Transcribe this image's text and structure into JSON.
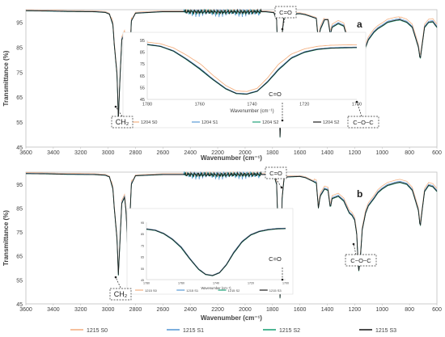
{
  "chart_data": [
    {
      "id": "a",
      "type": "line",
      "panel_letter": "a",
      "xlabel": "Wavenumber (cm⁻¹)",
      "ylabel": "Transmittance (%)",
      "xlim": [
        3600,
        600
      ],
      "ylim": [
        45,
        100
      ],
      "xticks": [
        "3600",
        "3400",
        "3200",
        "3000",
        "2800",
        "2600",
        "2400",
        "2200",
        "2000",
        "1800",
        "1600",
        "1400",
        "1200",
        "1000",
        "800",
        "600"
      ],
      "yticks": [
        "45",
        "55",
        "65",
        "75",
        "85",
        "95"
      ],
      "grid": false,
      "legend_position": "bottom",
      "series": [
        {
          "name": "1204 S0",
          "color": "#f4b183"
        },
        {
          "name": "1204 S1",
          "color": "#5b9bd5"
        },
        {
          "name": "1204 S2",
          "color": "#21a37a"
        },
        {
          "name": "1204 S2",
          "color": "#1f1f1f"
        }
      ],
      "spectrum": [
        [
          3600,
          99.6
        ],
        [
          3450,
          99.5
        ],
        [
          3300,
          99.3
        ],
        [
          3100,
          99.2
        ],
        [
          3020,
          98.9
        ],
        [
          2990,
          98.2
        ],
        [
          2965,
          94
        ],
        [
          2955,
          86
        ],
        [
          2935,
          74
        ],
        [
          2925,
          56
        ],
        [
          2915,
          70
        ],
        [
          2900,
          88
        ],
        [
          2880,
          90.5
        ],
        [
          2868,
          84
        ],
        [
          2855,
          66
        ],
        [
          2845,
          76
        ],
        [
          2830,
          95.5
        ],
        [
          2800,
          98.6
        ],
        [
          2600,
          99.2
        ],
        [
          2400,
          99.2
        ],
        [
          2200,
          99.1
        ],
        [
          2000,
          99.1
        ],
        [
          1850,
          99.2
        ],
        [
          1790,
          98.8
        ],
        [
          1770,
          96
        ],
        [
          1755,
          70
        ],
        [
          1745,
          49
        ],
        [
          1737,
          60
        ],
        [
          1730,
          90
        ],
        [
          1715,
          97.8
        ],
        [
          1690,
          98.2
        ],
        [
          1600,
          98.4
        ],
        [
          1560,
          98
        ],
        [
          1480,
          96.5
        ],
        [
          1465,
          87
        ],
        [
          1452,
          92
        ],
        [
          1420,
          96
        ],
        [
          1395,
          96
        ],
        [
          1378,
          90
        ],
        [
          1365,
          93
        ],
        [
          1320,
          94.5
        ],
        [
          1280,
          93.5
        ],
        [
          1240,
          86
        ],
        [
          1220,
          84
        ],
        [
          1200,
          83
        ],
        [
          1185,
          77
        ],
        [
          1172,
          60
        ],
        [
          1160,
          65
        ],
        [
          1145,
          78
        ],
        [
          1120,
          85
        ],
        [
          1100,
          88
        ],
        [
          1060,
          91
        ],
        [
          1030,
          92.5
        ],
        [
          1000,
          93.5
        ],
        [
          960,
          95
        ],
        [
          900,
          95.8
        ],
        [
          870,
          96
        ],
        [
          820,
          95
        ],
        [
          780,
          93
        ],
        [
          735,
          85
        ],
        [
          722,
          80
        ],
        [
          710,
          85
        ],
        [
          690,
          93
        ],
        [
          660,
          95
        ],
        [
          630,
          95.2
        ],
        [
          600,
          93
        ]
      ],
      "inset": {
        "xlim": [
          1780,
          1700
        ],
        "ylim": [
          45,
          95
        ],
        "xticks": [
          "1780",
          "1760",
          "1740",
          "1720",
          "1700"
        ],
        "yticks": [
          "45",
          "55",
          "65",
          "75",
          "85",
          "95"
        ],
        "xlabel": "Wavenumber (cm⁻¹)",
        "legend": [
          "1204 S0",
          "1204 S1",
          "1204 S2",
          "1204 S2"
        ],
        "spectrum": [
          [
            1780,
            91.5
          ],
          [
            1775,
            90
          ],
          [
            1770,
            86
          ],
          [
            1765,
            79
          ],
          [
            1760,
            71
          ],
          [
            1755,
            62
          ],
          [
            1750,
            54
          ],
          [
            1746,
            50
          ],
          [
            1742,
            49.5
          ],
          [
            1738,
            52
          ],
          [
            1734,
            60
          ],
          [
            1730,
            70
          ],
          [
            1725,
            80
          ],
          [
            1720,
            85
          ],
          [
            1715,
            87.5
          ],
          [
            1710,
            88.5
          ],
          [
            1705,
            88.8
          ],
          [
            1700,
            89
          ]
        ],
        "orange_offset": 3.5
      },
      "annotations": [
        {
          "id": "c_o_top",
          "text": "C=O"
        },
        {
          "id": "c_o_mid",
          "text": "C=O"
        },
        {
          "id": "ch2",
          "text": "CH₂"
        },
        {
          "id": "coc",
          "text": "C−O−C"
        }
      ]
    },
    {
      "id": "b",
      "type": "line",
      "panel_letter": "b",
      "xlabel": "Wavenumber (cm⁻¹)",
      "ylabel": "Transmittance (%)",
      "xlim": [
        3600,
        600
      ],
      "ylim": [
        45,
        100
      ],
      "xticks": [
        "3600",
        "3400",
        "3200",
        "3000",
        "2800",
        "2600",
        "2400",
        "2200",
        "2000",
        "1800",
        "1600",
        "1400",
        "1200",
        "1000",
        "800",
        "600"
      ],
      "yticks": [
        "45",
        "55",
        "65",
        "75",
        "85",
        "95"
      ],
      "grid": false,
      "legend_position": "bottom",
      "series": [
        {
          "name": "1215 S0",
          "color": "#f4b183"
        },
        {
          "name": "1215 S1",
          "color": "#5b9bd5"
        },
        {
          "name": "1215 S2",
          "color": "#21a37a"
        },
        {
          "name": "1215 S3",
          "color": "#1f1f1f"
        }
      ],
      "spectrum": [
        [
          3600,
          99.4
        ],
        [
          3450,
          99.3
        ],
        [
          3300,
          99.1
        ],
        [
          3100,
          99
        ],
        [
          3020,
          98.7
        ],
        [
          2990,
          98
        ],
        [
          2965,
          93
        ],
        [
          2955,
          85
        ],
        [
          2935,
          72
        ],
        [
          2925,
          57
        ],
        [
          2915,
          69
        ],
        [
          2900,
          87
        ],
        [
          2880,
          89.5
        ],
        [
          2868,
          83
        ],
        [
          2855,
          64
        ],
        [
          2845,
          75
        ],
        [
          2830,
          95
        ],
        [
          2800,
          98.5
        ],
        [
          2600,
          99
        ],
        [
          2400,
          99
        ],
        [
          2200,
          98.9
        ],
        [
          2000,
          99
        ],
        [
          1850,
          99
        ],
        [
          1790,
          98.6
        ],
        [
          1770,
          95
        ],
        [
          1755,
          69
        ],
        [
          1745,
          47.5
        ],
        [
          1737,
          59
        ],
        [
          1730,
          89
        ],
        [
          1715,
          97.5
        ],
        [
          1690,
          98
        ],
        [
          1600,
          98.2
        ],
        [
          1560,
          97.7
        ],
        [
          1480,
          95.5
        ],
        [
          1465,
          85
        ],
        [
          1452,
          90
        ],
        [
          1420,
          93
        ],
        [
          1395,
          92.5
        ],
        [
          1378,
          85
        ],
        [
          1365,
          89
        ],
        [
          1320,
          90
        ],
        [
          1280,
          88
        ],
        [
          1240,
          83
        ],
        [
          1220,
          82
        ],
        [
          1200,
          80
        ],
        [
          1185,
          74
        ],
        [
          1172,
          58
        ],
        [
          1160,
          63
        ],
        [
          1145,
          76
        ],
        [
          1120,
          83
        ],
        [
          1100,
          86
        ],
        [
          1060,
          89
        ],
        [
          1030,
          91.5
        ],
        [
          1000,
          93
        ],
        [
          960,
          94.5
        ],
        [
          900,
          95.5
        ],
        [
          870,
          95.8
        ],
        [
          820,
          95
        ],
        [
          780,
          92.5
        ],
        [
          735,
          84
        ],
        [
          722,
          77
        ],
        [
          710,
          83
        ],
        [
          690,
          92
        ],
        [
          660,
          94.5
        ],
        [
          630,
          94
        ],
        [
          600,
          92
        ]
      ],
      "inset": {
        "xlim": [
          1780,
          1700
        ],
        "ylim": [
          45,
          95
        ],
        "xticks": [
          "1780",
          "1760",
          "1740",
          "1720",
          "1700"
        ],
        "yticks": [
          "45",
          "55",
          "65",
          "75",
          "85",
          "95"
        ],
        "xlabel": "Wavenumber (cm⁻¹)",
        "legend": [
          "1215 S0",
          "1215 S1",
          "1215 S2",
          "1215 S3"
        ],
        "spectrum": [
          [
            1780,
            89
          ],
          [
            1775,
            88
          ],
          [
            1770,
            85
          ],
          [
            1765,
            80
          ],
          [
            1760,
            73
          ],
          [
            1755,
            63
          ],
          [
            1750,
            54
          ],
          [
            1746,
            49.5
          ],
          [
            1742,
            48.5
          ],
          [
            1738,
            51
          ],
          [
            1734,
            58
          ],
          [
            1730,
            68
          ],
          [
            1725,
            78
          ],
          [
            1720,
            84
          ],
          [
            1715,
            87
          ],
          [
            1710,
            88.5
          ],
          [
            1705,
            89.3
          ],
          [
            1700,
            89.5
          ]
        ],
        "orange_offset": 0.6
      },
      "annotations": [
        {
          "id": "c_o_top",
          "text": "C=O"
        },
        {
          "id": "c_o_mid",
          "text": "C=O"
        },
        {
          "id": "ch2",
          "text": "CH₂"
        },
        {
          "id": "coc",
          "text": "C−O−C"
        }
      ]
    }
  ]
}
